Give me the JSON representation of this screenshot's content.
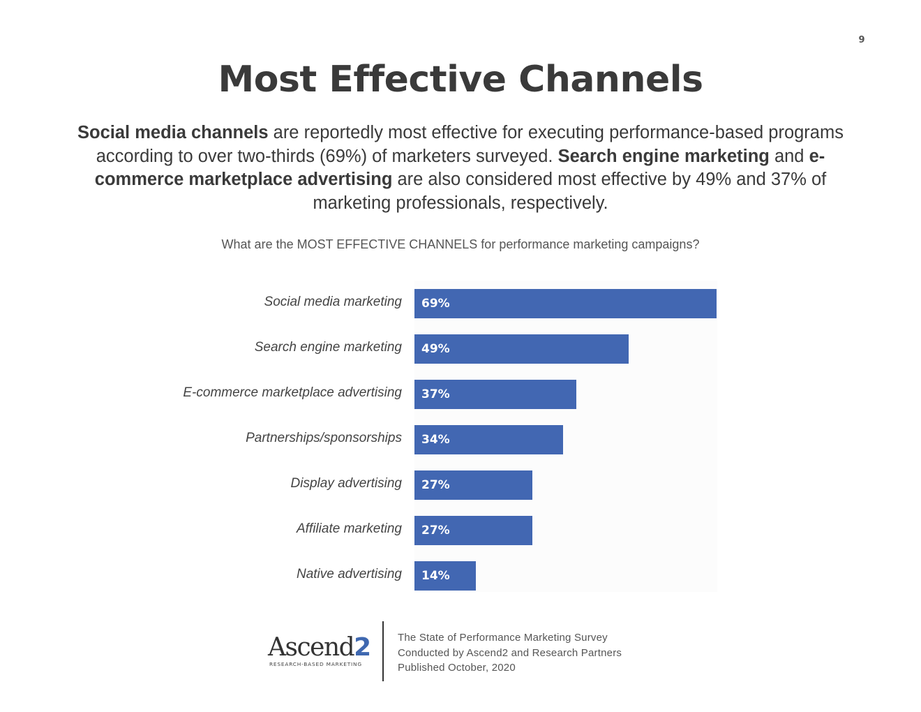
{
  "page_number": "9",
  "title": "Most Effective Channels",
  "summary": {
    "p1_bold": "Social media channels",
    "p1": " are reportedly most effective for executing performance-based programs according to over two-thirds (69%) of marketers surveyed. ",
    "p2_bold": "Search engine marketing",
    "p2": " and ",
    "p3_bold": "e-commerce marketplace advertising",
    "p3": " are also considered most effective by 49% and 37% of marketing professionals, respectively."
  },
  "chart_data": {
    "type": "bar",
    "orientation": "horizontal",
    "title": "What are the MOST EFFECTIVE CHANNELS for performance marketing campaigns?",
    "categories": [
      "Social media marketing",
      "Search engine marketing",
      "E-commerce marketplace advertising",
      "Partnerships/sponsorships",
      "Display advertising",
      "Affiliate marketing",
      "Native advertising"
    ],
    "values": [
      69,
      49,
      37,
      34,
      27,
      27,
      14
    ],
    "data_labels": [
      "69%",
      "49%",
      "37%",
      "34%",
      "27%",
      "27%",
      "14%"
    ],
    "unit": "%",
    "bar_color": "#4267b2",
    "grid": false,
    "legend": "none"
  },
  "footer": {
    "logo_text": "Ascend",
    "logo_two": "2",
    "logo_tagline": "RESEARCH-BASED MARKETING",
    "source_lines": [
      "The State of Performance Marketing Survey",
      "Conducted by Ascend2 and Research Partners",
      "Published October, 2020"
    ]
  }
}
